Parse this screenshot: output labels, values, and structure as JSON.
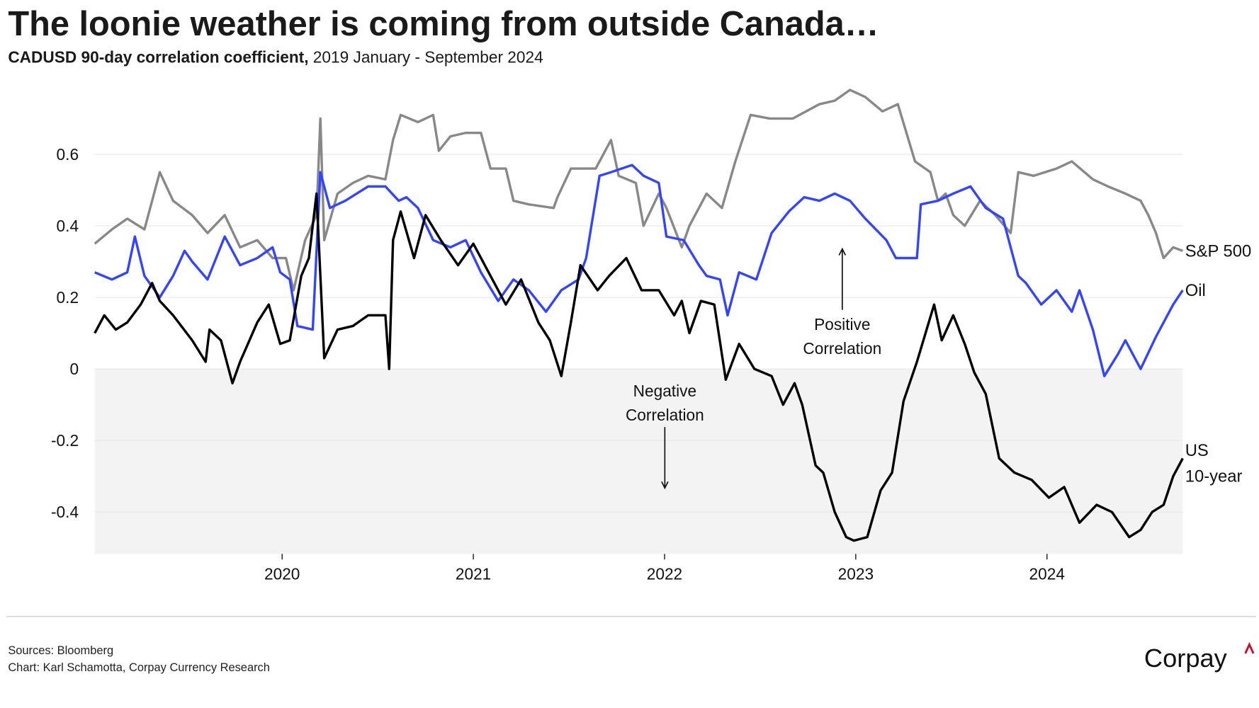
{
  "header": {
    "title": "The loonie weather is coming from outside Canada…",
    "subtitle_bold": "CADUSD 90-day correlation coefficient,",
    "subtitle_rest": " 2019 January - September 2024"
  },
  "footer": {
    "sources": "Sources: Bloomberg",
    "credit": "Chart: Karl Schamotta, Corpay Currency Research",
    "logo": "Corpay",
    "logo_accent_color": "#c8102e"
  },
  "chart_data": {
    "type": "line",
    "title": "The loonie weather is coming from outside Canada…",
    "subtitle": "CADUSD 90-day correlation coefficient, 2019 January - September 2024",
    "xlabel": "",
    "ylabel": "",
    "xlim": [
      2019.02,
      2024.71
    ],
    "ylim": [
      -0.517,
      0.78
    ],
    "x_ticks": [
      2020,
      2021,
      2022,
      2023,
      2024
    ],
    "x_tick_labels": [
      "2020",
      "2021",
      "2022",
      "2023",
      "2024"
    ],
    "y_ticks": [
      0.6,
      0.4,
      0.2,
      0,
      -0.2,
      -0.4
    ],
    "y_tick_labels": [
      "0.6",
      "0.4",
      "0.2",
      "0",
      "-0.2",
      "-0.4"
    ],
    "grid": "horizontal",
    "negative_region_shaded": true,
    "legend": "direct labels at right end of lines",
    "annotations": [
      {
        "line1": "Positive",
        "line2": "Correlation",
        "arrow": "up"
      },
      {
        "line1": "Negative",
        "line2": "Correlation",
        "arrow": "down"
      }
    ],
    "series": [
      {
        "name": "S&P 500",
        "label_line1": "S&P 500",
        "label_line2": "",
        "color": "#888888",
        "x": [
          2019.02,
          2019.11,
          2019.19,
          2019.28,
          2019.36,
          2019.43,
          2019.53,
          2019.61,
          2019.7,
          2019.78,
          2019.87,
          2019.95,
          2020.02,
          2020.06,
          2020.12,
          2020.18,
          2020.2,
          2020.22,
          2020.29,
          2020.37,
          2020.45,
          2020.54,
          2020.58,
          2020.62,
          2020.71,
          2020.79,
          2020.82,
          2020.88,
          2020.96,
          2021.04,
          2021.09,
          2021.17,
          2021.21,
          2021.29,
          2021.42,
          2021.44,
          2021.51,
          2021.64,
          2021.72,
          2021.76,
          2021.85,
          2021.89,
          2021.97,
          2022.01,
          2022.09,
          2022.13,
          2022.22,
          2022.3,
          2022.37,
          2022.45,
          2022.55,
          2022.67,
          2022.81,
          2022.89,
          2022.97,
          2023.05,
          2023.14,
          2023.22,
          2023.31,
          2023.39,
          2023.43,
          2023.47,
          2023.51,
          2023.57,
          2023.65,
          2023.73,
          2023.81,
          2023.85,
          2023.93,
          2024.05,
          2024.13,
          2024.24,
          2024.32,
          2024.41,
          2024.49,
          2024.53,
          2024.57,
          2024.61,
          2024.66,
          2024.71
        ],
        "y": [
          0.35,
          0.39,
          0.42,
          0.39,
          0.55,
          0.47,
          0.43,
          0.38,
          0.43,
          0.34,
          0.36,
          0.31,
          0.31,
          0.22,
          0.36,
          0.43,
          0.7,
          0.36,
          0.49,
          0.52,
          0.54,
          0.53,
          0.64,
          0.71,
          0.69,
          0.71,
          0.61,
          0.65,
          0.66,
          0.66,
          0.56,
          0.56,
          0.47,
          0.46,
          0.45,
          0.48,
          0.56,
          0.56,
          0.64,
          0.54,
          0.52,
          0.4,
          0.49,
          0.45,
          0.34,
          0.4,
          0.49,
          0.45,
          0.58,
          0.71,
          0.7,
          0.7,
          0.74,
          0.75,
          0.78,
          0.76,
          0.72,
          0.74,
          0.58,
          0.55,
          0.47,
          0.49,
          0.43,
          0.4,
          0.47,
          0.43,
          0.38,
          0.55,
          0.54,
          0.56,
          0.58,
          0.53,
          0.51,
          0.49,
          0.47,
          0.43,
          0.38,
          0.31,
          0.34,
          0.33
        ]
      },
      {
        "name": "Oil",
        "label_line1": "Oil",
        "label_line2": "",
        "color": "#3344ff",
        "x": [
          2019.02,
          2019.11,
          2019.19,
          2019.23,
          2019.28,
          2019.36,
          2019.43,
          2019.49,
          2019.53,
          2019.61,
          2019.7,
          2019.78,
          2019.87,
          2019.95,
          2019.99,
          2020.04,
          2020.08,
          2020.16,
          2020.2,
          2020.25,
          2020.33,
          2020.45,
          2020.54,
          2020.61,
          2020.65,
          2020.71,
          2020.79,
          2020.88,
          2020.96,
          2021.04,
          2021.13,
          2021.21,
          2021.29,
          2021.38,
          2021.46,
          2021.55,
          2021.59,
          2021.66,
          2021.72,
          2021.83,
          2021.89,
          2021.97,
          2022.01,
          2022.1,
          2022.18,
          2022.22,
          2022.29,
          2022.33,
          2022.39,
          2022.48,
          2022.56,
          2022.65,
          2022.73,
          2022.81,
          2022.89,
          2022.97,
          2023.05,
          2023.16,
          2023.21,
          2023.32,
          2023.34,
          2023.43,
          2023.51,
          2023.6,
          2023.68,
          2023.77,
          2023.81,
          2023.85,
          2023.89,
          2023.97,
          2024.05,
          2024.13,
          2024.17,
          2024.24,
          2024.3,
          2024.37,
          2024.41,
          2024.49,
          2024.57,
          2024.61,
          2024.66,
          2024.71
        ],
        "y": [
          0.27,
          0.25,
          0.27,
          0.37,
          0.26,
          0.2,
          0.26,
          0.33,
          0.3,
          0.25,
          0.37,
          0.29,
          0.31,
          0.34,
          0.27,
          0.25,
          0.12,
          0.11,
          0.55,
          0.45,
          0.47,
          0.51,
          0.51,
          0.47,
          0.48,
          0.45,
          0.36,
          0.34,
          0.36,
          0.27,
          0.19,
          0.25,
          0.22,
          0.16,
          0.22,
          0.25,
          0.31,
          0.54,
          0.55,
          0.57,
          0.54,
          0.52,
          0.37,
          0.36,
          0.29,
          0.26,
          0.25,
          0.15,
          0.27,
          0.25,
          0.38,
          0.44,
          0.48,
          0.47,
          0.49,
          0.47,
          0.42,
          0.36,
          0.31,
          0.31,
          0.46,
          0.47,
          0.49,
          0.51,
          0.45,
          0.42,
          0.34,
          0.26,
          0.24,
          0.18,
          0.22,
          0.16,
          0.22,
          0.11,
          -0.02,
          0.04,
          0.08,
          0.0,
          0.09,
          0.13,
          0.18,
          0.22
        ]
      },
      {
        "name": "US 10-year",
        "label_line1": "US",
        "label_line2": "10-year",
        "color": "#000000",
        "x": [
          2019.02,
          2019.07,
          2019.13,
          2019.19,
          2019.26,
          2019.32,
          2019.36,
          2019.43,
          2019.53,
          2019.6,
          2019.62,
          2019.68,
          2019.74,
          2019.78,
          2019.87,
          2019.93,
          2019.99,
          2020.04,
          2020.1,
          2020.14,
          2020.18,
          2020.22,
          2020.29,
          2020.37,
          2020.45,
          2020.54,
          2020.56,
          2020.58,
          2020.62,
          2020.69,
          2020.75,
          2020.83,
          2020.92,
          2021.0,
          2021.09,
          2021.17,
          2021.25,
          2021.34,
          2021.4,
          2021.46,
          2021.51,
          2021.56,
          2021.65,
          2021.71,
          2021.8,
          2021.88,
          2021.97,
          2022.05,
          2022.09,
          2022.13,
          2022.19,
          2022.26,
          2022.32,
          2022.39,
          2022.47,
          2022.56,
          2022.62,
          2022.68,
          2022.72,
          2022.79,
          2022.83,
          2022.89,
          2022.95,
          2022.99,
          2023.06,
          2023.13,
          2023.19,
          2023.25,
          2023.32,
          2023.41,
          2023.45,
          2023.51,
          2023.57,
          2023.62,
          2023.68,
          2023.75,
          2023.83,
          2023.92,
          2024.01,
          2024.09,
          2024.17,
          2024.26,
          2024.34,
          2024.43,
          2024.49,
          2024.55,
          2024.61,
          2024.66,
          2024.71
        ],
        "y": [
          0.1,
          0.15,
          0.11,
          0.13,
          0.18,
          0.24,
          0.19,
          0.15,
          0.08,
          0.02,
          0.11,
          0.08,
          -0.04,
          0.02,
          0.13,
          0.18,
          0.07,
          0.08,
          0.26,
          0.31,
          0.49,
          0.03,
          0.11,
          0.12,
          0.15,
          0.15,
          0.0,
          0.36,
          0.44,
          0.31,
          0.43,
          0.36,
          0.29,
          0.35,
          0.26,
          0.18,
          0.25,
          0.13,
          0.08,
          -0.02,
          0.13,
          0.29,
          0.22,
          0.26,
          0.31,
          0.22,
          0.22,
          0.15,
          0.19,
          0.1,
          0.19,
          0.18,
          -0.03,
          0.07,
          0.0,
          -0.02,
          -0.1,
          -0.04,
          -0.1,
          -0.27,
          -0.29,
          -0.4,
          -0.47,
          -0.48,
          -0.47,
          -0.34,
          -0.29,
          -0.09,
          0.02,
          0.18,
          0.08,
          0.15,
          0.07,
          -0.01,
          -0.07,
          -0.25,
          -0.29,
          -0.31,
          -0.36,
          -0.33,
          -0.43,
          -0.38,
          -0.4,
          -0.47,
          -0.45,
          -0.4,
          -0.38,
          -0.3,
          -0.25
        ]
      }
    ]
  }
}
